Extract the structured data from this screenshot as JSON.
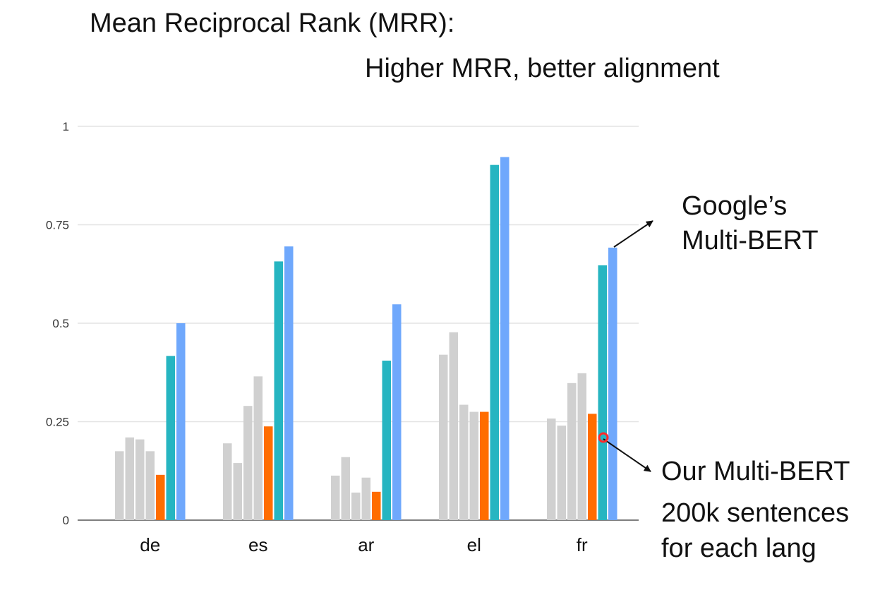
{
  "title": "Mean Reciprocal Rank (MRR):",
  "subtitle": "Higher MRR, better alignment",
  "annotations": {
    "google_line1": "Google’s",
    "google_line2": "Multi-BERT",
    "ours_line1": "Our Multi-BERT",
    "ours_line2": "200k sentences",
    "ours_line3": "for each lang"
  },
  "colors": {
    "gray": "#d0d0d0",
    "orange": "#ff6d00",
    "teal": "#26b5c1",
    "blue": "#6fa8fc",
    "grid": "#e3e3e3",
    "axis": "#555555",
    "marker": "#ff2a2a"
  },
  "chart_data": {
    "type": "bar",
    "title": "Mean Reciprocal Rank (MRR):",
    "subtitle": "Higher MRR, better alignment",
    "categories": [
      "de",
      "es",
      "ar",
      "el",
      "fr"
    ],
    "yticks": [
      "0",
      "0.25",
      "0.5",
      "0.75",
      "1"
    ],
    "ylim": [
      0,
      1
    ],
    "grid": true,
    "legend": "none",
    "series": [
      {
        "values": [
          0.175,
          0.195,
          0.113,
          0.42,
          0.258
        ],
        "color": "#d0d0d0"
      },
      {
        "values": [
          0.21,
          0.145,
          0.16,
          0.477,
          0.24
        ],
        "color": "#d0d0d0"
      },
      {
        "values": [
          0.205,
          0.29,
          0.07,
          0.293,
          0.348
        ],
        "color": "#d0d0d0"
      },
      {
        "values": [
          0.175,
          0.365,
          0.108,
          0.275,
          0.373
        ],
        "color": "#d0d0d0"
      },
      {
        "name": "Our Multi-BERT",
        "values": [
          0.115,
          0.238,
          0.072,
          0.275,
          0.27
        ],
        "color": "#ff6d00"
      },
      {
        "values": [
          0.417,
          0.657,
          0.405,
          0.902,
          0.647
        ],
        "color": "#26b5c1"
      },
      {
        "name": "Google’s Multi-BERT",
        "values": [
          0.5,
          0.695,
          0.548,
          0.922,
          0.692
        ],
        "color": "#6fa8fc"
      }
    ]
  }
}
